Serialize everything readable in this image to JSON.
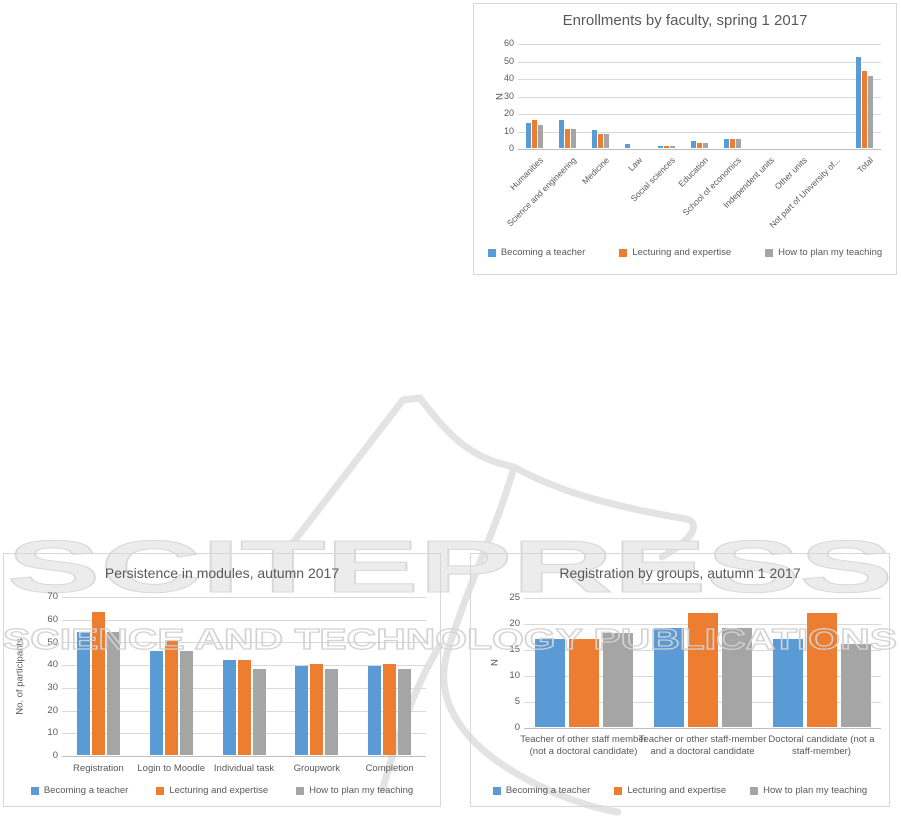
{
  "watermark": {
    "brand": "SCITEPRESS",
    "tagline": "SCIENCE AND TECHNOLOGY PUBLICATIONS"
  },
  "colors": {
    "series_blue": "#5B9BD5",
    "series_orange": "#ED7D31",
    "series_gray": "#A5A5A5",
    "title_text": "#595959",
    "axis_text": "#595959",
    "gridline": "#D9D9D9",
    "chart_border": "#D7D7D7",
    "watermark_gray": "#E2E2E2"
  },
  "chart_data": [
    {
      "id": "enrollments",
      "type": "bar",
      "title": "Enrollments by faculty, spring 1 2017",
      "xlabel": "",
      "ylabel": "N",
      "ylim": [
        0,
        60
      ],
      "ytick_step": 10,
      "grid": true,
      "legend_position": "bottom",
      "categories": [
        "Humanities",
        "Science and engineering",
        "Medicine",
        "Law",
        "Social sciences",
        "Education",
        "School of economics",
        "Independent units",
        "Other units",
        "Not part of University of...",
        "Total"
      ],
      "series": [
        {
          "name": "Becoming a teacher",
          "color": "#5B9BD5",
          "values": [
            14,
            16,
            10,
            2,
            1,
            4,
            5,
            0,
            0,
            0,
            52
          ]
        },
        {
          "name": "Lecturing and expertise",
          "color": "#ED7D31",
          "values": [
            16,
            11,
            8,
            0,
            1,
            3,
            5,
            0,
            0,
            0,
            44
          ]
        },
        {
          "name": "How to plan my teaching",
          "color": "#A5A5A5",
          "values": [
            13,
            11,
            8,
            0,
            1,
            3,
            5,
            0,
            0,
            0,
            41
          ]
        }
      ]
    },
    {
      "id": "persistence",
      "type": "bar",
      "title": "Persistence in modules, autumn 2017",
      "xlabel": "",
      "ylabel": "No. of participants",
      "ylim": [
        0,
        70
      ],
      "ytick_step": 10,
      "grid": true,
      "legend_position": "bottom",
      "categories": [
        "Registration",
        "Login to Moodle",
        "Individual task",
        "Groupwork",
        "Completion"
      ],
      "series": [
        {
          "name": "Becoming a teacher",
          "color": "#5B9BD5",
          "values": [
            54,
            46,
            42,
            39,
            39
          ]
        },
        {
          "name": "Lecturing and expertise",
          "color": "#ED7D31",
          "values": [
            63,
            50,
            42,
            40,
            40
          ]
        },
        {
          "name": "How to plan my teaching",
          "color": "#A5A5A5",
          "values": [
            54,
            46,
            38,
            38,
            38
          ]
        }
      ]
    },
    {
      "id": "registration-groups",
      "type": "bar",
      "title": "Registration by groups, autumn 1 2017",
      "xlabel": "",
      "ylabel": "N",
      "ylim": [
        0,
        25
      ],
      "ytick_step": 5,
      "grid": true,
      "legend_position": "bottom",
      "categories": [
        "Teacher of other staff member (not a doctoral candidate)",
        "Teacher or other staff-member and a doctoral candidate",
        "Doctoral candidate (not a staff-member)"
      ],
      "series": [
        {
          "name": "Becoming a teacher",
          "color": "#5B9BD5",
          "values": [
            17,
            19,
            17
          ]
        },
        {
          "name": "Lecturing and expertise",
          "color": "#ED7D31",
          "values": [
            17,
            22,
            22
          ]
        },
        {
          "name": "How to plan my teaching",
          "color": "#A5A5A5",
          "values": [
            18,
            19,
            16
          ]
        }
      ]
    }
  ]
}
